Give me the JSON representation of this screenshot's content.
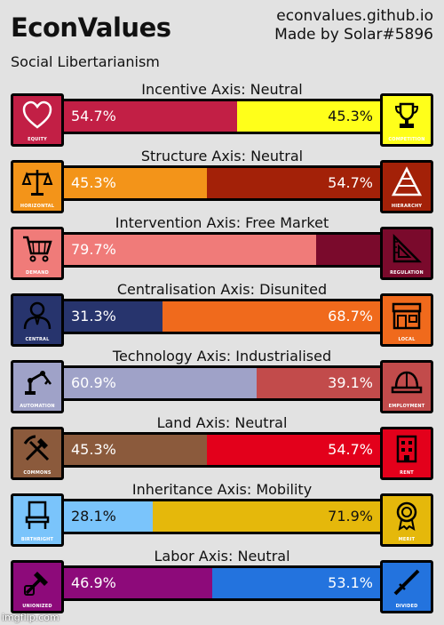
{
  "header": {
    "title": "EconValues",
    "subtitle": "Social Libertarianism",
    "site": "econvalues.github.io",
    "author": "Made by Solar#5896"
  },
  "axes": [
    {
      "title": "Incentive Axis: Neutral",
      "left": {
        "pct": "54.7%",
        "value": 54.7,
        "color": "#c21f45",
        "text_color": "#ffffff",
        "label": "EQUITY",
        "icon": "heart-icon"
      },
      "right": {
        "pct": "45.3%",
        "value": 45.3,
        "color": "#ffff1a",
        "text_color": "#111111",
        "label": "COMPETITION",
        "icon": "trophy-icon"
      }
    },
    {
      "title": "Structure Axis: Neutral",
      "left": {
        "pct": "45.3%",
        "value": 45.3,
        "color": "#f39419",
        "text_color": "#ffffff",
        "label": "HORIZONTAL",
        "icon": "scales-icon"
      },
      "right": {
        "pct": "54.7%",
        "value": 54.7,
        "color": "#a32108",
        "text_color": "#ffffff",
        "label": "HIERARCHY",
        "icon": "pyramid-icon"
      }
    },
    {
      "title": "Intervention Axis: Free Market",
      "left": {
        "pct": "79.7%",
        "value": 79.7,
        "color": "#f07b79",
        "text_color": "#ffffff",
        "label": "DEMAND",
        "icon": "cart-icon"
      },
      "right": {
        "pct": "",
        "value": 20.3,
        "color": "#7a0a2c",
        "text_color": "#ffffff",
        "label": "REGULATION",
        "icon": "ruler-icon"
      }
    },
    {
      "title": "Centralisation Axis: Disunited",
      "left": {
        "pct": "31.3%",
        "value": 31.3,
        "color": "#27346d",
        "text_color": "#ffffff",
        "label": "CENTRAL",
        "icon": "official-icon"
      },
      "right": {
        "pct": "68.7%",
        "value": 68.7,
        "color": "#f06a1c",
        "text_color": "#ffffff",
        "label": "LOCAL",
        "icon": "shop-icon"
      }
    },
    {
      "title": "Technology Axis: Industrialised",
      "left": {
        "pct": "60.9%",
        "value": 60.9,
        "color": "#9fa2c8",
        "text_color": "#ffffff",
        "label": "AUTOMATION",
        "icon": "robot-arm-icon"
      },
      "right": {
        "pct": "39.1%",
        "value": 39.1,
        "color": "#c24b4b",
        "text_color": "#ffffff",
        "label": "EMPLOYMENT",
        "icon": "hardhat-icon"
      }
    },
    {
      "title": "Land Axis: Neutral",
      "left": {
        "pct": "45.3%",
        "value": 45.3,
        "color": "#8b5a3c",
        "text_color": "#ffffff",
        "label": "COMMONS",
        "icon": "shovel-pick-icon"
      },
      "right": {
        "pct": "54.7%",
        "value": 54.7,
        "color": "#e3001b",
        "text_color": "#ffffff",
        "label": "RENT",
        "icon": "building-icon"
      }
    },
    {
      "title": "Inheritance Axis: Mobility",
      "left": {
        "pct": "28.1%",
        "value": 28.1,
        "color": "#7ac4fb",
        "text_color": "#111111",
        "label": "BIRTHRIGHT",
        "icon": "throne-icon"
      },
      "right": {
        "pct": "71.9%",
        "value": 71.9,
        "color": "#e5b80b",
        "text_color": "#111111",
        "label": "MERIT",
        "icon": "medal-icon"
      }
    },
    {
      "title": "Labor Axis: Neutral",
      "left": {
        "pct": "46.9%",
        "value": 46.9,
        "color": "#8d0a7a",
        "text_color": "#ffffff",
        "label": "UNIONIZED",
        "icon": "fist-hammer-icon"
      },
      "right": {
        "pct": "53.1%",
        "value": 53.1,
        "color": "#2373de",
        "text_color": "#ffffff",
        "label": "DIVIDED",
        "icon": "baton-icon"
      }
    }
  ],
  "watermark": "imgflip.com"
}
